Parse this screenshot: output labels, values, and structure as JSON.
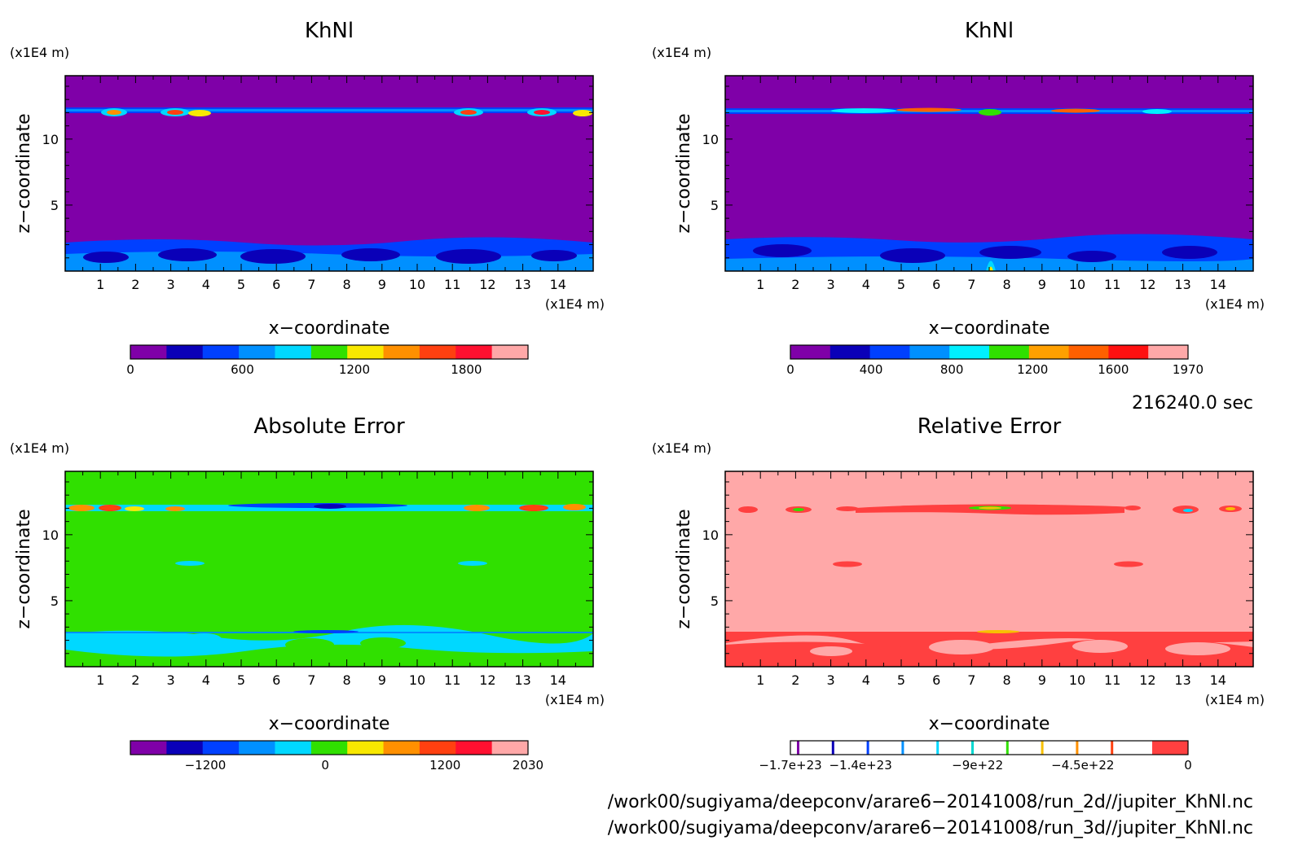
{
  "chart_data": [
    {
      "type": "heatmap",
      "title": "KhNl",
      "xlabel": "x−coordinate",
      "ylabel": "z−coordinate",
      "x_unit": "(x1E4 m)",
      "y_unit": "(x1E4 m)",
      "xlim": [
        0,
        15
      ],
      "ylim": [
        0,
        14.8
      ],
      "x_ticks": [
        1,
        2,
        3,
        4,
        5,
        6,
        7,
        8,
        9,
        10,
        11,
        12,
        13,
        14
      ],
      "y_ticks": [
        5,
        10
      ],
      "background_color": "#7f00a8",
      "colorbar": {
        "min": 0,
        "max": 2130,
        "tick_values": [
          0,
          600,
          1200,
          1800
        ],
        "tick_labels": [
          "0",
          "600",
          "1200",
          "1800"
        ],
        "colors": [
          "#7f00a8",
          "#0a00b8",
          "#0040ff",
          "#0090ff",
          "#00d8ff",
          "#30e000",
          "#f8e800",
          "#ff9000",
          "#ff4010",
          "#ff1030",
          "#ffa8a8"
        ]
      }
    },
    {
      "type": "heatmap",
      "title": "KhNl",
      "xlabel": "x−coordinate",
      "ylabel": "z−coordinate",
      "x_unit": "(x1E4 m)",
      "y_unit": "(x1E4 m)",
      "xlim": [
        0,
        15
      ],
      "ylim": [
        0,
        14.8
      ],
      "x_ticks": [
        1,
        2,
        3,
        4,
        5,
        6,
        7,
        8,
        9,
        10,
        11,
        12,
        13,
        14
      ],
      "y_ticks": [
        5,
        10
      ],
      "background_color": "#7f00a8",
      "colorbar": {
        "min": 0,
        "max": 1970,
        "tick_values": [
          0,
          400,
          800,
          1200,
          1600,
          1970
        ],
        "tick_labels": [
          "0",
          "400",
          "800",
          "1200",
          "1600",
          "1970"
        ],
        "colors": [
          "#7f00a8",
          "#0a00b8",
          "#0040ff",
          "#0090ff",
          "#00f0ff",
          "#30e000",
          "#ffa000",
          "#ff6000",
          "#ff1010",
          "#ffa8a8"
        ]
      }
    },
    {
      "type": "heatmap",
      "title": "Absolute Error",
      "xlabel": "x−coordinate",
      "ylabel": "z−coordinate",
      "x_unit": "(x1E4 m)",
      "y_unit": "(x1E4 m)",
      "xlim": [
        0,
        15
      ],
      "ylim": [
        0,
        14.8
      ],
      "x_ticks": [
        1,
        2,
        3,
        4,
        5,
        6,
        7,
        8,
        9,
        10,
        11,
        12,
        13,
        14
      ],
      "y_ticks": [
        5,
        10
      ],
      "background_color": "#30e000",
      "colorbar": {
        "min": -1950,
        "max": 2030,
        "tick_values": [
          -1200,
          0,
          1200,
          2030
        ],
        "tick_labels": [
          "−1200",
          "0",
          "1200",
          "2030"
        ],
        "colors": [
          "#7f00a8",
          "#0a00b8",
          "#0040ff",
          "#0090ff",
          "#00d8ff",
          "#30e000",
          "#f8e800",
          "#ff9000",
          "#ff4010",
          "#ff1030",
          "#ffa8a8"
        ]
      }
    },
    {
      "type": "heatmap",
      "title": "Relative Error",
      "xlabel": "x−coordinate",
      "ylabel": "z−coordinate",
      "x_unit": "(x1E4 m)",
      "y_unit": "(x1E4 m)",
      "xlim": [
        0,
        15
      ],
      "ylim": [
        0,
        14.8
      ],
      "x_ticks": [
        1,
        2,
        3,
        4,
        5,
        6,
        7,
        8,
        9,
        10,
        11,
        12,
        13,
        14
      ],
      "y_ticks": [
        5,
        10
      ],
      "background_color": "#ffa8a8",
      "colorbar": {
        "min": -1.7e+23,
        "max": 0,
        "tick_values": [
          -1.7e+23,
          -1.4e+23,
          -9e+22,
          -4.5e+22,
          0
        ],
        "tick_labels": [
          "−1.7e+23",
          "−1.4e+23",
          "−9e+22",
          "−4.5e+22",
          "0"
        ],
        "line_colors": [
          "#7f00a8",
          "#0a00b8",
          "#0040ff",
          "#0090ff",
          "#00d8ff",
          "#00d8d0",
          "#30e000",
          "#f8c000",
          "#ff9000",
          "#ff4010"
        ],
        "end_color": "#ff4040"
      }
    }
  ],
  "time_label": "216240.0 sec",
  "file_paths": [
    "/work00/sugiyama/deepconv/arare6−20141008/run_2d//jupiter_KhNl.nc",
    "/work00/sugiyama/deepconv/arare6−20141008/run_3d//jupiter_KhNl.nc"
  ]
}
